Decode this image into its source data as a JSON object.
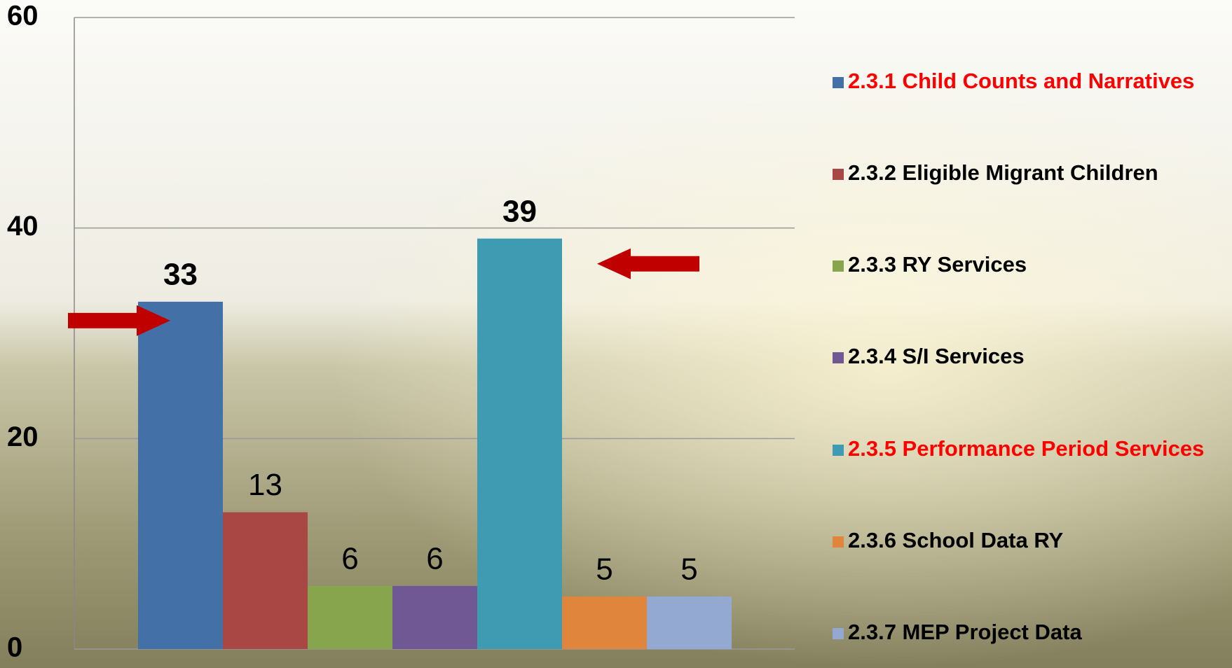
{
  "chart_data": {
    "type": "bar",
    "series": [
      {
        "name": "2.3.1 Child Counts and Narratives",
        "color": "#4470a8",
        "values": [
          33
        ],
        "highlight": true
      },
      {
        "name": "2.3.2 Eligible Migrant Children",
        "color": "#a94744",
        "values": [
          13
        ]
      },
      {
        "name": "2.3.3 RY Services",
        "color": "#87a54d",
        "values": [
          6
        ]
      },
      {
        "name": "2.3.4 S/I Services",
        "color": "#6f5893",
        "values": [
          6
        ]
      },
      {
        "name": "2.3.5 Performance Period Services",
        "color": "#3f9bb1",
        "values": [
          39
        ],
        "highlight": true
      },
      {
        "name": "2.3.6 School Data RY",
        "color": "#e0863c",
        "values": [
          5
        ]
      },
      {
        "name": "2.3.7 MEP Project Data",
        "color": "#93a9d2",
        "values": [
          5
        ]
      }
    ],
    "ylim": [
      0,
      60
    ],
    "yticks": [
      0,
      20,
      40,
      60
    ],
    "grid": true,
    "legend": "right"
  }
}
